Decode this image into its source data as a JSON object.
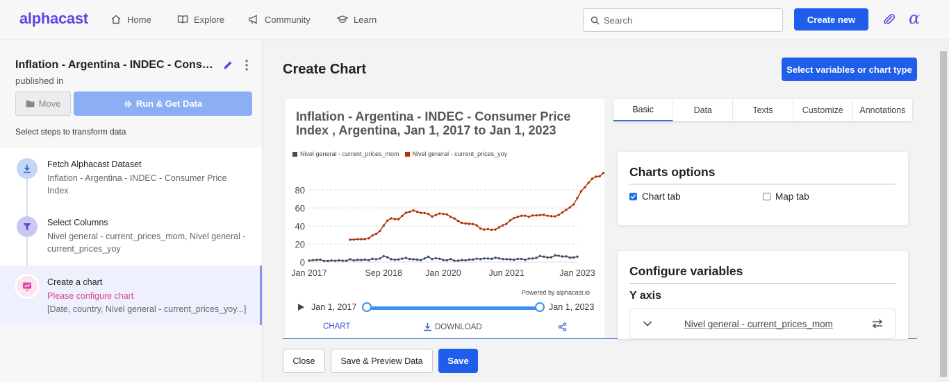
{
  "brand": {
    "logo": "alphacast",
    "accent": "#6045e0",
    "primary": "#1f5eea"
  },
  "nav": [
    {
      "label": "Home",
      "icon": "home-icon"
    },
    {
      "label": "Explore",
      "icon": "book-icon"
    },
    {
      "label": "Community",
      "icon": "megaphone-icon"
    },
    {
      "label": "Learn",
      "icon": "graduation-cap-icon"
    }
  ],
  "header": {
    "search_placeholder": "Search",
    "create_new": "Create new"
  },
  "sidebar": {
    "title": "Inflation - Argentina - INDEC - Consumer Price Index",
    "published": "published in",
    "move": "Move",
    "run": "Run & Get Data",
    "select_steps": "Select steps to transform data",
    "steps": [
      {
        "title": "Fetch Alphacast Dataset",
        "desc": "Inflation - Argentina - INDEC - Consumer Price Index",
        "icon": "download-icon"
      },
      {
        "title": "Select Columns",
        "desc": "Nivel general - current_prices_mom, Nivel general - current_prices_yoy",
        "icon": "filter-icon"
      },
      {
        "title": "Create a chart",
        "warning": "Please configure chart",
        "desc": "[Date, country, Nivel general - current_prices_yoy...]",
        "icon": "chart-icon"
      }
    ]
  },
  "main": {
    "title": "Create Chart",
    "select_vars": "Select variables or chart type",
    "powered": "Powered by alphacast.io",
    "range_start": "Jan 1, 2017",
    "range_end": "Jan 1, 2023",
    "chart_tab": "CHART",
    "download_tab": "DOWNLOAD"
  },
  "chart_data": {
    "type": "line",
    "title": "Inflation - Argentina - INDEC - Consumer Price Index , Argentina, Jan 1, 2017 to Jan 1, 2023",
    "xlabel": "",
    "ylabel": "",
    "ylim": [
      0,
      100
    ],
    "yticks": [
      0,
      20,
      40,
      60,
      80
    ],
    "xtick_labels": [
      "Jan 2017",
      "Sep 2018",
      "Jan 2020",
      "Jun 2021",
      "Jan 2023"
    ],
    "series": [
      {
        "name": "Nivel general - current_prices_mom",
        "color": "#3d4f63",
        "start": "2017-01",
        "values": [
          1.6,
          2.1,
          2.4,
          2.6,
          1.3,
          1.2,
          1.7,
          1.4,
          1.9,
          1.5,
          1.4,
          3.1,
          1.8,
          2.4,
          2.3,
          2.7,
          2.1,
          3.7,
          3.1,
          3.9,
          6.5,
          5.4,
          3.2,
          2.6,
          2.9,
          3.8,
          4.7,
          3.4,
          3.1,
          2.7,
          2.2,
          4.0,
          5.9,
          3.3,
          4.3,
          3.7,
          2.3,
          2.0,
          3.3,
          1.5,
          1.5,
          2.2,
          1.9,
          2.7,
          2.8,
          3.8,
          3.2,
          4.0,
          4.0,
          3.6,
          4.8,
          4.1,
          3.3,
          3.2,
          3.0,
          2.5,
          3.5,
          3.5,
          2.5,
          3.8,
          3.9,
          4.7,
          6.7,
          6.0,
          5.1,
          5.3,
          7.4,
          7.0,
          6.2,
          6.3,
          4.9,
          5.1,
          6.0
        ]
      },
      {
        "name": "Nivel general - current_prices_yoy",
        "color": "#b4330d",
        "start": "2017-12",
        "values": [
          24.8,
          25.0,
          25.4,
          25.4,
          25.5,
          26.3,
          29.5,
          31.2,
          34.4,
          40.5,
          45.9,
          48.5,
          47.6,
          47.6,
          51.3,
          54.7,
          55.8,
          57.3,
          55.8,
          54.5,
          54.4,
          53.5,
          50.5,
          52.1,
          53.8,
          53.5,
          52.9,
          50.2,
          48.4,
          45.6,
          43.4,
          42.8,
          42.4,
          42.2,
          40.7,
          37.2,
          36.1,
          36.6,
          35.8,
          36.1,
          38.5,
          40.7,
          42.6,
          46.3,
          48.8,
          50.2,
          51.3,
          51.4,
          50.2,
          51.7,
          51.8,
          52.1,
          52.5,
          51.4,
          50.9,
          50.7,
          52.3,
          55.1,
          58.0,
          60.7,
          64.0,
          71.0,
          78.5,
          83.0,
          88.0,
          92.4,
          94.8,
          95.2,
          98.8
        ]
      }
    ],
    "legend": "top-left"
  },
  "config": {
    "tabs": [
      "Basic",
      "Data",
      "Texts",
      "Customize",
      "Annotations"
    ],
    "active_tab": "Basic",
    "charts_options": {
      "title": "Charts options",
      "chart_tab": "Chart tab",
      "chart_tab_checked": true,
      "map_tab": "Map tab",
      "map_tab_checked": false
    },
    "configure_variables": {
      "title": "Configure variables",
      "y_axis": "Y axis",
      "variable": "Nivel general - current_prices_mom"
    }
  },
  "footer": {
    "close": "Close",
    "preview": "Save & Preview Data",
    "save": "Save"
  }
}
